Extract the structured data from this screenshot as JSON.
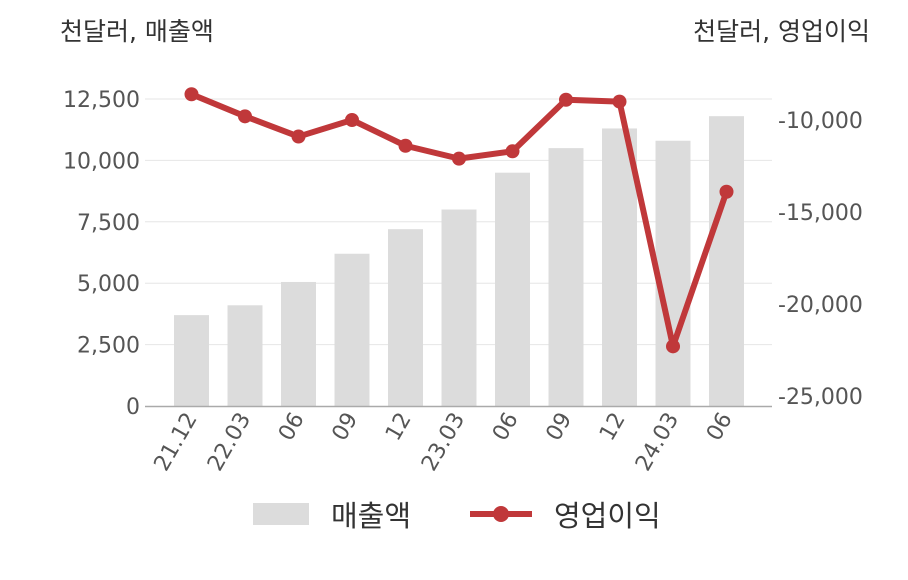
{
  "units": {
    "left": "천달러, 매출액",
    "right": "천달러, 영업이익"
  },
  "legend": {
    "bar": "매출액",
    "line": "영업이익"
  },
  "colors": {
    "bar": "#dcdcdc",
    "line": "#c0383a",
    "grid": "#e6e6e6"
  },
  "chart_data": {
    "type": "bar",
    "categories": [
      "21.12",
      "22.03",
      "06",
      "09",
      "12",
      "23.03",
      "06",
      "09",
      "12",
      "24.03",
      "06"
    ],
    "series": [
      {
        "name": "매출액",
        "type": "bar",
        "axis": "left",
        "values": [
          3700,
          4100,
          5050,
          6200,
          7200,
          8000,
          9500,
          10500,
          11300,
          10800,
          11800
        ]
      },
      {
        "name": "영업이익",
        "type": "line",
        "axis": "right",
        "values": [
          -8600,
          -9800,
          -10900,
          -10000,
          -11400,
          -12100,
          -11700,
          -8900,
          -9000,
          -22300,
          -13900
        ]
      }
    ],
    "y_left": {
      "ticks": [
        "0",
        "2,500",
        "5,000",
        "7,500",
        "10,000",
        "12,500"
      ],
      "tick_values": [
        0,
        2500,
        5000,
        7500,
        10000,
        12500
      ],
      "range": [
        0,
        14000
      ]
    },
    "y_right": {
      "ticks": [
        "-10,000",
        "-15,000",
        "-20,000",
        "-25,000"
      ],
      "tick_values": [
        -10000,
        -15000,
        -20000,
        -25000
      ],
      "range": [
        -25000,
        -8000
      ]
    },
    "grid": true,
    "legend_position": "bottom"
  }
}
